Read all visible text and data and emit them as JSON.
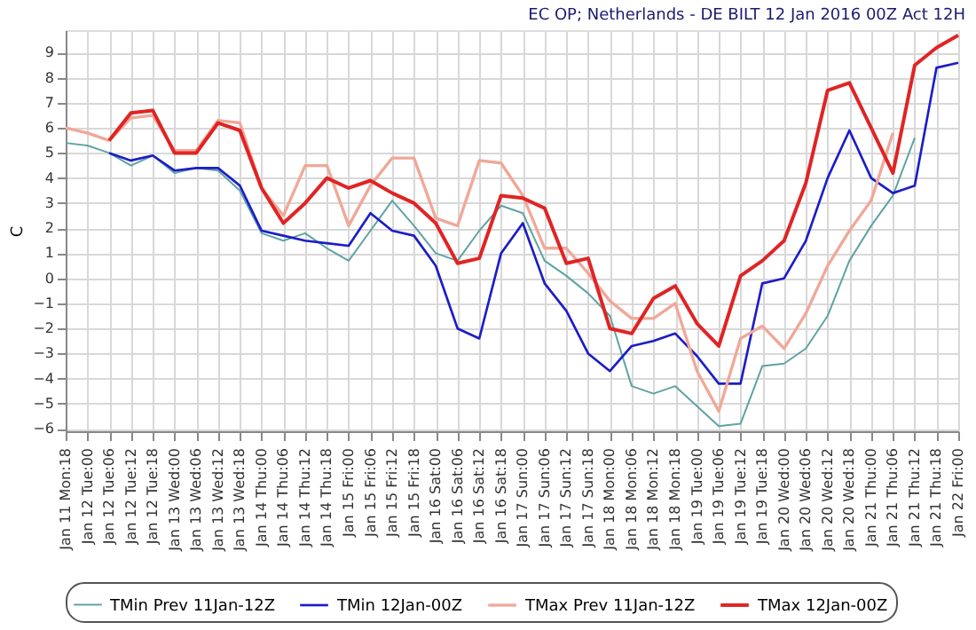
{
  "chart_data": {
    "type": "line",
    "title": "EC OP; Netherlands - DE BILT 12 Jan 2016 00Z Act 12H",
    "ylabel": "C",
    "categories": [
      "Jan 11 Mon:18",
      "Jan 12 Tue:00",
      "Jan 12 Tue:06",
      "Jan 12 Tue:12",
      "Jan 12 Tue:18",
      "Jan 13 Wed:00",
      "Jan 13 Wed:06",
      "Jan 13 Wed:12",
      "Jan 13 Wed:18",
      "Jan 14 Thu:00",
      "Jan 14 Thu:06",
      "Jan 14 Thu:12",
      "Jan 14 Thu:18",
      "Jan 15 Fri:00",
      "Jan 15 Fri:06",
      "Jan 15 Fri:12",
      "Jan 15 Fri:18",
      "Jan 16 Sat:00",
      "Jan 16 Sat:06",
      "Jan 16 Sat:12",
      "Jan 16 Sat:18",
      "Jan 17 Sun:00",
      "Jan 17 Sun:06",
      "Jan 17 Sun:12",
      "Jan 17 Sun:18",
      "Jan 18 Mon:00",
      "Jan 18 Mon:06",
      "Jan 18 Mon:12",
      "Jan 18 Mon:18",
      "Jan 19 Tue:00",
      "Jan 19 Tue:06",
      "Jan 19 Tue:12",
      "Jan 19 Tue:18",
      "Jan 20 Wed:00",
      "Jan 20 Wed:06",
      "Jan 20 Wed:12",
      "Jan 20 Wed:18",
      "Jan 21 Thu:00",
      "Jan 21 Thu:06",
      "Jan 21 Thu:12",
      "Jan 21 Thu:18",
      "Jan 22 Fri:00"
    ],
    "series": [
      {
        "name": "TMin Prev 11Jan-12Z",
        "color": "#5fa3a3",
        "values": [
          5.4,
          5.3,
          5.0,
          4.5,
          4.9,
          4.2,
          4.4,
          4.3,
          3.5,
          1.8,
          1.5,
          1.8,
          1.2,
          0.7,
          1.9,
          3.1,
          2.1,
          1.0,
          0.7,
          1.9,
          2.9,
          2.6,
          0.7,
          0.1,
          -0.6,
          -1.5,
          -4.3,
          -4.6,
          -4.3,
          -5.1,
          -5.9,
          -5.8,
          -3.5,
          -3.4,
          -2.8,
          -1.5,
          0.7,
          2.1,
          3.3,
          5.6,
          null,
          null
        ]
      },
      {
        "name": "TMin 12Jan-00Z",
        "color": "#1c1cc8",
        "values": [
          null,
          null,
          5.0,
          4.7,
          4.9,
          4.3,
          4.4,
          4.4,
          3.7,
          1.9,
          1.7,
          1.5,
          1.4,
          1.3,
          2.6,
          1.9,
          1.7,
          0.5,
          -2.0,
          -2.4,
          1.0,
          2.2,
          -0.2,
          -1.3,
          -3.0,
          -3.7,
          -2.7,
          -2.5,
          -2.2,
          -3.1,
          -4.2,
          -4.2,
          -0.2,
          0.0,
          1.5,
          4.0,
          5.9,
          4.0,
          3.4,
          3.7,
          8.4,
          8.6
        ]
      },
      {
        "name": "TMax Prev 11Jan-12Z",
        "color": "#f0a898",
        "values": [
          6.0,
          5.8,
          5.5,
          6.4,
          6.5,
          5.1,
          5.1,
          6.3,
          6.2,
          3.6,
          2.5,
          4.5,
          4.5,
          2.1,
          3.7,
          4.8,
          4.8,
          2.4,
          2.1,
          4.7,
          4.6,
          3.3,
          1.2,
          1.2,
          0.2,
          -0.9,
          -1.6,
          -1.6,
          -1.0,
          -3.7,
          -5.3,
          -2.4,
          -1.9,
          -2.8,
          -1.4,
          0.5,
          1.9,
          3.1,
          5.8,
          null,
          null,
          null
        ]
      },
      {
        "name": "TMax 12Jan-00Z",
        "color": "#e02424",
        "values": [
          null,
          null,
          5.5,
          6.6,
          6.7,
          5.0,
          5.0,
          6.2,
          5.9,
          3.6,
          2.2,
          3.0,
          4.0,
          3.6,
          3.9,
          3.4,
          3.0,
          2.2,
          0.6,
          0.8,
          3.3,
          3.2,
          2.8,
          0.6,
          0.8,
          -2.0,
          -2.2,
          -0.8,
          -0.3,
          -1.8,
          -2.7,
          0.1,
          0.7,
          1.5,
          3.8,
          7.5,
          7.8,
          6.0,
          4.2,
          8.5,
          9.2,
          9.7
        ]
      }
    ],
    "ylim": [
      -6.1,
      9.9
    ],
    "yticks": [
      -6,
      -5,
      -4,
      -3,
      -2,
      -1,
      0,
      1,
      2,
      3,
      4,
      5,
      6,
      7,
      8,
      9
    ],
    "grid": true,
    "legend": "bottom",
    "marker": "none",
    "line_style": "solid"
  }
}
